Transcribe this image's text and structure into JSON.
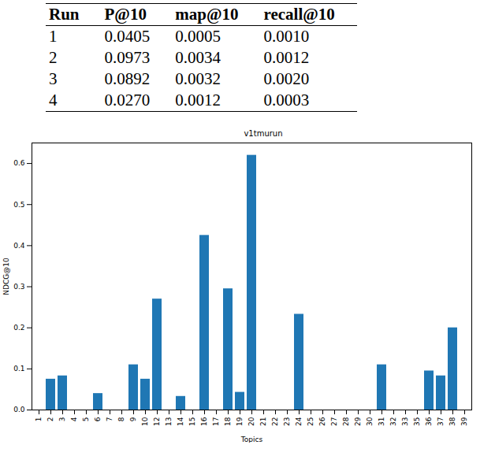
{
  "table": {
    "header": [
      "Run",
      "P@10",
      "map@10",
      "recall@10"
    ],
    "rows": [
      [
        "1",
        "0.0405",
        "0.0005",
        "0.0010"
      ],
      [
        "2",
        "0.0973",
        "0.0034",
        "0.0012"
      ],
      [
        "3",
        "0.0892",
        "0.0032",
        "0.0020"
      ],
      [
        "4",
        "0.0270",
        "0.0012",
        "0.0003"
      ]
    ]
  },
  "chart_data": {
    "type": "bar",
    "title": "v1tmurun",
    "x_label": "Topics",
    "y_label": "NDCG@10",
    "categories": [
      "1",
      "2",
      "3",
      "4",
      "5",
      "6",
      "7",
      "8",
      "9",
      "10",
      "12",
      "13",
      "14",
      "15",
      "16",
      "17",
      "18",
      "19",
      "20",
      "21",
      "22",
      "23",
      "24",
      "25",
      "26",
      "27",
      "28",
      "29",
      "30",
      "31",
      "32",
      "33",
      "35",
      "36",
      "37",
      "38",
      "39"
    ],
    "values": [
      0,
      0.075,
      0.083,
      0,
      0,
      0.04,
      0,
      0,
      0.11,
      0.075,
      0.27,
      0,
      0.033,
      0,
      0.425,
      0,
      0.295,
      0.043,
      0.62,
      0,
      0,
      0,
      0.233,
      0,
      0,
      0,
      0,
      0,
      0,
      0.11,
      0,
      0,
      0,
      0.095,
      0.083,
      0.2,
      0
    ],
    "color": "#1f77b4",
    "ylim": [
      0,
      0.65
    ],
    "yticks": [
      {
        "value": 0,
        "label": "0.0"
      },
      {
        "value": 0.1,
        "label": "0.1"
      },
      {
        "value": 0.2,
        "label": "0.2"
      },
      {
        "value": 0.3,
        "label": "0.3"
      },
      {
        "value": 0.4,
        "label": "0.4"
      },
      {
        "value": 0.5,
        "label": "0.5"
      },
      {
        "value": 0.6,
        "label": "0.6"
      }
    ]
  }
}
